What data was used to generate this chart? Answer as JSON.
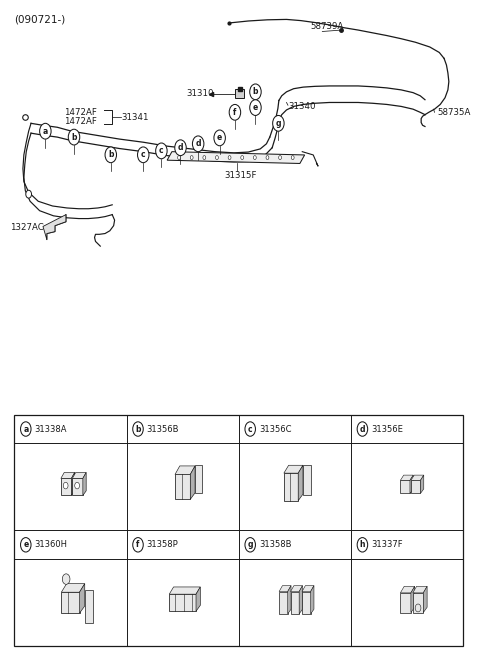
{
  "header_text": "(090721-)",
  "bg_color": "#ffffff",
  "line_color": "#1a1a1a",
  "cells": [
    {
      "letter": "a",
      "code": "31338A",
      "row": 0,
      "col": 0
    },
    {
      "letter": "b",
      "code": "31356B",
      "row": 0,
      "col": 1
    },
    {
      "letter": "c",
      "code": "31356C",
      "row": 0,
      "col": 2
    },
    {
      "letter": "d",
      "code": "31356E",
      "row": 0,
      "col": 3
    },
    {
      "letter": "e",
      "code": "31360H",
      "row": 1,
      "col": 0
    },
    {
      "letter": "f",
      "code": "31358P",
      "row": 1,
      "col": 1
    },
    {
      "letter": "g",
      "code": "31358B",
      "row": 1,
      "col": 2
    },
    {
      "letter": "h",
      "code": "31337F",
      "row": 1,
      "col": 3
    }
  ]
}
